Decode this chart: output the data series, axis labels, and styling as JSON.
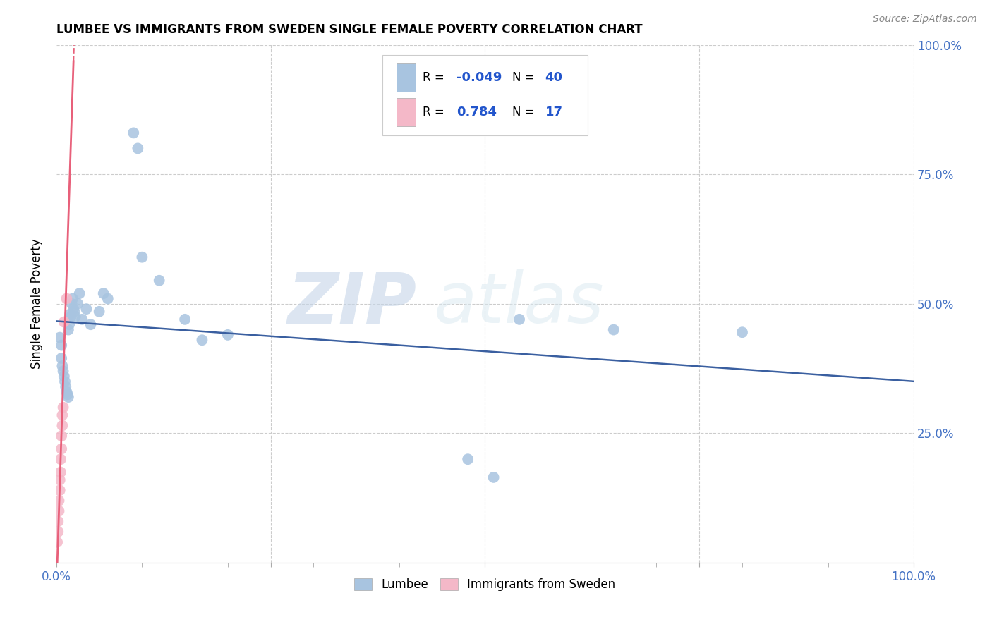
{
  "title": "LUMBEE VS IMMIGRANTS FROM SWEDEN SINGLE FEMALE POVERTY CORRELATION CHART",
  "source": "Source: ZipAtlas.com",
  "ylabel": "Single Female Poverty",
  "xlim": [
    0,
    1.0
  ],
  "ylim": [
    0,
    1.0
  ],
  "lumbee_color": "#a8c4e0",
  "sweden_color": "#f4b8c8",
  "lumbee_R": -0.049,
  "lumbee_N": 40,
  "sweden_R": 0.784,
  "sweden_N": 17,
  "lumbee_line_color": "#3a5fa0",
  "sweden_line_color": "#e8607a",
  "watermark_zip": "ZIP",
  "watermark_atlas": "atlas",
  "lumbee_x": [
    0.004,
    0.006,
    0.006,
    0.007,
    0.008,
    0.009,
    0.01,
    0.011,
    0.012,
    0.013,
    0.014,
    0.014,
    0.015,
    0.016,
    0.017,
    0.018,
    0.019,
    0.02,
    0.021,
    0.022,
    0.025,
    0.027,
    0.03,
    0.035,
    0.04,
    0.05,
    0.055,
    0.06,
    0.09,
    0.095,
    0.1,
    0.12,
    0.15,
    0.17,
    0.2,
    0.48,
    0.51,
    0.54,
    0.65,
    0.8
  ],
  "lumbee_y": [
    0.435,
    0.42,
    0.395,
    0.38,
    0.37,
    0.36,
    0.35,
    0.34,
    0.33,
    0.325,
    0.32,
    0.45,
    0.46,
    0.48,
    0.475,
    0.5,
    0.51,
    0.49,
    0.485,
    0.475,
    0.5,
    0.52,
    0.47,
    0.49,
    0.46,
    0.485,
    0.52,
    0.51,
    0.83,
    0.8,
    0.59,
    0.545,
    0.47,
    0.43,
    0.44,
    0.2,
    0.165,
    0.47,
    0.45,
    0.445
  ],
  "sweden_x": [
    0.001,
    0.002,
    0.002,
    0.003,
    0.003,
    0.004,
    0.004,
    0.005,
    0.005,
    0.006,
    0.006,
    0.007,
    0.007,
    0.008,
    0.009,
    0.012,
    0.02
  ],
  "sweden_y": [
    0.04,
    0.06,
    0.08,
    0.1,
    0.12,
    0.14,
    0.16,
    0.175,
    0.2,
    0.22,
    0.245,
    0.265,
    0.285,
    0.3,
    0.465,
    0.51,
    1.02
  ]
}
